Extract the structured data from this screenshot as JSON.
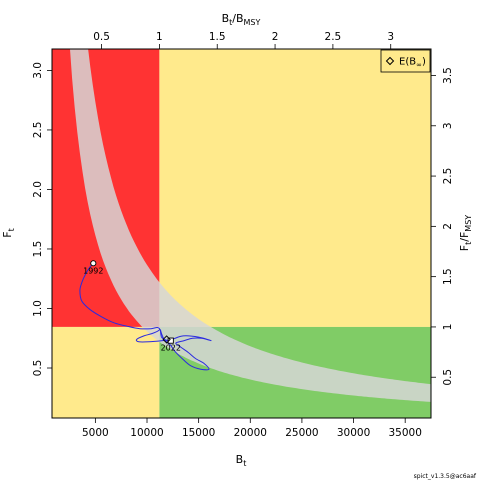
{
  "chart_data": {
    "type": "scatter",
    "title": "",
    "xlabel_base": "B",
    "xlabel_sub": "t",
    "ylabel_base": "F",
    "ylabel_sub": "t",
    "top_label_base": "B",
    "top_label_sub": "t",
    "top_label_mid": "/B",
    "top_label_sub2": "MSY",
    "right_label_base": "F",
    "right_label_sub": "t",
    "right_label_mid": "/F",
    "right_label_sub2": "MSY",
    "xlim": [
      800,
      37500
    ],
    "ylim": [
      0.08,
      3.18
    ],
    "x_ticks": [
      5000,
      10000,
      15000,
      20000,
      25000,
      30000,
      35000
    ],
    "x_tick_labels": [
      "5000",
      "10000",
      "15000",
      "20000",
      "25000",
      "30000",
      "35000"
    ],
    "y_ticks": [
      0.5,
      1.0,
      1.5,
      2.0,
      2.5,
      3.0
    ],
    "y_tick_labels": [
      "0.5",
      "1.0",
      "1.5",
      "2.0",
      "2.5",
      "3.0"
    ],
    "bmsy": 11200,
    "fmsy": 0.845,
    "top_ticks": [
      0.5,
      1,
      1.5,
      2,
      2.5,
      3
    ],
    "top_tick_labels": [
      "0.5",
      "1",
      "1.5",
      "2",
      "2.5",
      "3"
    ],
    "right_ticks": [
      0.5,
      1,
      1.5,
      2,
      2.5,
      3,
      3.5
    ],
    "right_tick_labels": [
      "0.5",
      "1",
      "1.5",
      "2",
      "2.5",
      "3",
      "3.5"
    ],
    "colors": {
      "red_zone": "#ff3333",
      "yellow_zone": "#ffea8c",
      "green_zone": "#80cc66",
      "band": "#d6d6d6",
      "trajectory": "#2a2ae0",
      "last_segment": "#3344ee"
    },
    "equilibrium_band": {
      "k": 11200,
      "lower": 0.72,
      "upper": 1.22
    },
    "trajectory": [
      [
        4800,
        1.38
      ],
      [
        4400,
        1.34
      ],
      [
        4000,
        1.28
      ],
      [
        3700,
        1.22
      ],
      [
        3500,
        1.15
      ],
      [
        3700,
        1.06
      ],
      [
        4500,
        0.99
      ],
      [
        5600,
        0.93
      ],
      [
        6800,
        0.88
      ],
      [
        8100,
        0.85
      ],
      [
        9300,
        0.83
      ],
      [
        10400,
        0.83
      ],
      [
        11000,
        0.84
      ],
      [
        11200,
        0.82
      ],
      [
        10500,
        0.79
      ],
      [
        9700,
        0.77
      ],
      [
        9000,
        0.74
      ],
      [
        9200,
        0.72
      ],
      [
        10200,
        0.72
      ],
      [
        11500,
        0.73
      ],
      [
        12400,
        0.74
      ],
      [
        13500,
        0.77
      ],
      [
        15000,
        0.76
      ],
      [
        16200,
        0.73
      ],
      [
        15300,
        0.75
      ],
      [
        14400,
        0.75
      ],
      [
        13600,
        0.73
      ],
      [
        12800,
        0.71
      ],
      [
        13200,
        0.68
      ],
      [
        14000,
        0.63
      ],
      [
        14700,
        0.58
      ],
      [
        15500,
        0.54
      ],
      [
        16000,
        0.49
      ],
      [
        15200,
        0.49
      ],
      [
        14200,
        0.52
      ],
      [
        13400,
        0.58
      ],
      [
        12700,
        0.64
      ],
      [
        12300,
        0.69
      ],
      [
        11900,
        0.72
      ],
      [
        11600,
        0.75
      ],
      [
        11400,
        0.79
      ],
      [
        11300,
        0.82
      ],
      [
        11400,
        0.76
      ],
      [
        11700,
        0.74
      ],
      [
        12000,
        0.73
      ],
      [
        12300,
        0.73
      ]
    ],
    "first_point": {
      "x": 4800,
      "y": 1.38,
      "label": "1992"
    },
    "last_point": {
      "x": 12300,
      "y": 0.73,
      "label": "2022"
    },
    "equilibrium_point": {
      "x": 11900,
      "y": 0.74
    },
    "legend": {
      "entries": [
        "E(B∞)"
      ],
      "position": "top-right"
    }
  },
  "legend_label_base": "E(B",
  "legend_label_sub": "∞",
  "legend_label_close": ")",
  "footer": "spict_v1.3.5@ac6aaf"
}
